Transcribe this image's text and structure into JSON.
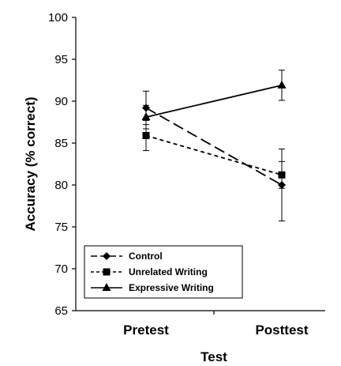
{
  "chart_data": {
    "type": "line",
    "xlabel": "Test",
    "ylabel": "Accuracy (% correct)",
    "categories": [
      "Pretest",
      "Posttest"
    ],
    "ylim": [
      65,
      100
    ],
    "yticks": [
      65,
      70,
      75,
      80,
      85,
      90,
      95,
      100
    ],
    "grid": false,
    "legend_position": "bottom-left",
    "series": [
      {
        "name": "Control",
        "marker": "diamond",
        "dash": "long-dash",
        "values": [
          89.2,
          80.0
        ],
        "errors": [
          2.0,
          4.3
        ]
      },
      {
        "name": "Unrelated Writing",
        "marker": "square",
        "dash": "short-dash",
        "values": [
          85.9,
          81.2
        ],
        "errors": [
          1.8,
          1.6
        ]
      },
      {
        "name": "Expressive Writing",
        "marker": "triangle",
        "dash": "solid",
        "values": [
          88.1,
          91.9
        ],
        "errors": [
          1.4,
          1.8
        ]
      }
    ]
  }
}
